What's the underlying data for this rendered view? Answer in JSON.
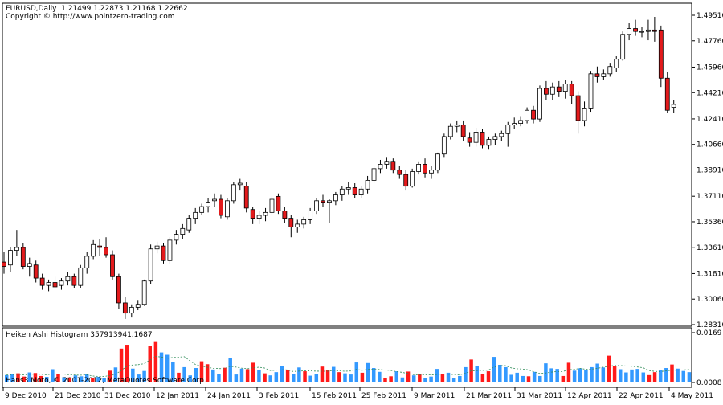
{
  "header": {
    "symbol_line": "EURUSD,Daily  1.21499 1.22873 1.21168 1.22662",
    "copyright": "Copyright © http://www.pointzero-trading.com"
  },
  "indicator": {
    "title": "Heiken Ashi Histogram 357913941.1687",
    "watermark": "Hans3 Moto, © 2001-2012, MetaQuotes Software Corp."
  },
  "colors": {
    "bull_body": "#ffffff",
    "bear_body": "#e31a1c",
    "candle_outline": "#000000",
    "hist_bull": "#3399ff",
    "hist_bear": "#ff1a1a",
    "signal_line": "#2e8b57",
    "background": "#ffffff"
  },
  "chart_data": [
    {
      "type": "candlestick",
      "yaxis_ticks": [
        "1.49510",
        "1.47760",
        "1.45960",
        "1.44210",
        "1.42410",
        "1.40660",
        "1.38910",
        "1.37110",
        "1.35360",
        "1.33610",
        "1.31810",
        "1.30060",
        "1.28310"
      ],
      "ylim": [
        1.2831,
        1.4951
      ],
      "xaxis_ticks": [
        "9 Dec 2010",
        "21 Dec 2010",
        "31 Dec 2010",
        "12 Jan 2011",
        "24 Jan 2011",
        "3 Feb 2011",
        "15 Feb 2011",
        "25 Feb 2011",
        "9 Mar 2011",
        "21 Mar 2011",
        "31 Mar 2011",
        "12 Apr 2011",
        "22 Apr 2011",
        "4 May 2011"
      ],
      "candles": [
        {
          "o": 1.326,
          "h": 1.333,
          "l": 1.318,
          "c": 1.323
        },
        {
          "o": 1.324,
          "h": 1.336,
          "l": 1.319,
          "c": 1.334
        },
        {
          "o": 1.334,
          "h": 1.348,
          "l": 1.33,
          "c": 1.336
        },
        {
          "o": 1.336,
          "h": 1.339,
          "l": 1.321,
          "c": 1.323
        },
        {
          "o": 1.323,
          "h": 1.329,
          "l": 1.316,
          "c": 1.325
        },
        {
          "o": 1.324,
          "h": 1.327,
          "l": 1.312,
          "c": 1.315
        },
        {
          "o": 1.315,
          "h": 1.318,
          "l": 1.307,
          "c": 1.31
        },
        {
          "o": 1.31,
          "h": 1.314,
          "l": 1.306,
          "c": 1.312
        },
        {
          "o": 1.312,
          "h": 1.316,
          "l": 1.308,
          "c": 1.309
        },
        {
          "o": 1.31,
          "h": 1.315,
          "l": 1.307,
          "c": 1.313
        },
        {
          "o": 1.313,
          "h": 1.319,
          "l": 1.31,
          "c": 1.316
        },
        {
          "o": 1.316,
          "h": 1.318,
          "l": 1.308,
          "c": 1.31
        },
        {
          "o": 1.31,
          "h": 1.324,
          "l": 1.308,
          "c": 1.322
        },
        {
          "o": 1.322,
          "h": 1.333,
          "l": 1.318,
          "c": 1.33
        },
        {
          "o": 1.33,
          "h": 1.341,
          "l": 1.328,
          "c": 1.338
        },
        {
          "o": 1.337,
          "h": 1.342,
          "l": 1.33,
          "c": 1.336
        },
        {
          "o": 1.336,
          "h": 1.343,
          "l": 1.329,
          "c": 1.331
        },
        {
          "o": 1.331,
          "h": 1.334,
          "l": 1.314,
          "c": 1.316
        },
        {
          "o": 1.316,
          "h": 1.318,
          "l": 1.294,
          "c": 1.298
        },
        {
          "o": 1.298,
          "h": 1.302,
          "l": 1.287,
          "c": 1.291
        },
        {
          "o": 1.291,
          "h": 1.297,
          "l": 1.288,
          "c": 1.295
        },
        {
          "o": 1.295,
          "h": 1.3,
          "l": 1.293,
          "c": 1.297
        },
        {
          "o": 1.297,
          "h": 1.314,
          "l": 1.296,
          "c": 1.313
        },
        {
          "o": 1.313,
          "h": 1.338,
          "l": 1.311,
          "c": 1.335
        },
        {
          "o": 1.335,
          "h": 1.34,
          "l": 1.332,
          "c": 1.337
        },
        {
          "o": 1.337,
          "h": 1.339,
          "l": 1.325,
          "c": 1.327
        },
        {
          "o": 1.327,
          "h": 1.343,
          "l": 1.325,
          "c": 1.341
        },
        {
          "o": 1.341,
          "h": 1.348,
          "l": 1.338,
          "c": 1.345
        },
        {
          "o": 1.345,
          "h": 1.352,
          "l": 1.342,
          "c": 1.349
        },
        {
          "o": 1.348,
          "h": 1.358,
          "l": 1.346,
          "c": 1.356
        },
        {
          "o": 1.356,
          "h": 1.363,
          "l": 1.352,
          "c": 1.36
        },
        {
          "o": 1.36,
          "h": 1.366,
          "l": 1.358,
          "c": 1.364
        },
        {
          "o": 1.364,
          "h": 1.37,
          "l": 1.36,
          "c": 1.367
        },
        {
          "o": 1.368,
          "h": 1.373,
          "l": 1.364,
          "c": 1.369
        },
        {
          "o": 1.369,
          "h": 1.372,
          "l": 1.356,
          "c": 1.358
        },
        {
          "o": 1.357,
          "h": 1.37,
          "l": 1.355,
          "c": 1.368
        },
        {
          "o": 1.368,
          "h": 1.381,
          "l": 1.366,
          "c": 1.379
        },
        {
          "o": 1.379,
          "h": 1.383,
          "l": 1.375,
          "c": 1.38
        },
        {
          "o": 1.378,
          "h": 1.381,
          "l": 1.36,
          "c": 1.363
        },
        {
          "o": 1.362,
          "h": 1.364,
          "l": 1.352,
          "c": 1.356
        },
        {
          "o": 1.356,
          "h": 1.361,
          "l": 1.352,
          "c": 1.358
        },
        {
          "o": 1.358,
          "h": 1.363,
          "l": 1.354,
          "c": 1.36
        },
        {
          "o": 1.36,
          "h": 1.371,
          "l": 1.358,
          "c": 1.369
        },
        {
          "o": 1.371,
          "h": 1.373,
          "l": 1.359,
          "c": 1.361
        },
        {
          "o": 1.361,
          "h": 1.364,
          "l": 1.353,
          "c": 1.356
        },
        {
          "o": 1.356,
          "h": 1.358,
          "l": 1.343,
          "c": 1.35
        },
        {
          "o": 1.35,
          "h": 1.355,
          "l": 1.346,
          "c": 1.352
        },
        {
          "o": 1.352,
          "h": 1.357,
          "l": 1.349,
          "c": 1.355
        },
        {
          "o": 1.355,
          "h": 1.363,
          "l": 1.352,
          "c": 1.361
        },
        {
          "o": 1.361,
          "h": 1.37,
          "l": 1.359,
          "c": 1.368
        },
        {
          "o": 1.368,
          "h": 1.372,
          "l": 1.364,
          "c": 1.367
        },
        {
          "o": 1.367,
          "h": 1.369,
          "l": 1.353,
          "c": 1.368
        },
        {
          "o": 1.368,
          "h": 1.374,
          "l": 1.365,
          "c": 1.372
        },
        {
          "o": 1.372,
          "h": 1.378,
          "l": 1.368,
          "c": 1.376
        },
        {
          "o": 1.376,
          "h": 1.381,
          "l": 1.372,
          "c": 1.377
        },
        {
          "o": 1.377,
          "h": 1.38,
          "l": 1.37,
          "c": 1.372
        },
        {
          "o": 1.372,
          "h": 1.378,
          "l": 1.37,
          "c": 1.376
        },
        {
          "o": 1.376,
          "h": 1.385,
          "l": 1.373,
          "c": 1.382
        },
        {
          "o": 1.382,
          "h": 1.392,
          "l": 1.38,
          "c": 1.39
        },
        {
          "o": 1.39,
          "h": 1.396,
          "l": 1.387,
          "c": 1.393
        },
        {
          "o": 1.393,
          "h": 1.398,
          "l": 1.39,
          "c": 1.395
        },
        {
          "o": 1.395,
          "h": 1.397,
          "l": 1.387,
          "c": 1.389
        },
        {
          "o": 1.389,
          "h": 1.392,
          "l": 1.383,
          "c": 1.386
        },
        {
          "o": 1.386,
          "h": 1.389,
          "l": 1.375,
          "c": 1.378
        },
        {
          "o": 1.378,
          "h": 1.39,
          "l": 1.377,
          "c": 1.388
        },
        {
          "o": 1.388,
          "h": 1.395,
          "l": 1.386,
          "c": 1.393
        },
        {
          "o": 1.393,
          "h": 1.397,
          "l": 1.384,
          "c": 1.387
        },
        {
          "o": 1.387,
          "h": 1.392,
          "l": 1.383,
          "c": 1.389
        },
        {
          "o": 1.389,
          "h": 1.401,
          "l": 1.387,
          "c": 1.4
        },
        {
          "o": 1.4,
          "h": 1.414,
          "l": 1.398,
          "c": 1.412
        },
        {
          "o": 1.412,
          "h": 1.421,
          "l": 1.41,
          "c": 1.419
        },
        {
          "o": 1.419,
          "h": 1.423,
          "l": 1.415,
          "c": 1.42
        },
        {
          "o": 1.42,
          "h": 1.423,
          "l": 1.409,
          "c": 1.412
        },
        {
          "o": 1.411,
          "h": 1.415,
          "l": 1.405,
          "c": 1.408
        },
        {
          "o": 1.408,
          "h": 1.418,
          "l": 1.405,
          "c": 1.415
        },
        {
          "o": 1.415,
          "h": 1.417,
          "l": 1.404,
          "c": 1.406
        },
        {
          "o": 1.406,
          "h": 1.412,
          "l": 1.403,
          "c": 1.41
        },
        {
          "o": 1.41,
          "h": 1.414,
          "l": 1.406,
          "c": 1.412
        },
        {
          "o": 1.412,
          "h": 1.416,
          "l": 1.409,
          "c": 1.414
        },
        {
          "o": 1.414,
          "h": 1.422,
          "l": 1.405,
          "c": 1.42
        },
        {
          "o": 1.42,
          "h": 1.425,
          "l": 1.417,
          "c": 1.421
        },
        {
          "o": 1.421,
          "h": 1.426,
          "l": 1.419,
          "c": 1.423
        },
        {
          "o": 1.423,
          "h": 1.432,
          "l": 1.421,
          "c": 1.43
        },
        {
          "o": 1.43,
          "h": 1.433,
          "l": 1.421,
          "c": 1.424
        },
        {
          "o": 1.424,
          "h": 1.447,
          "l": 1.422,
          "c": 1.445
        },
        {
          "o": 1.445,
          "h": 1.45,
          "l": 1.437,
          "c": 1.441
        },
        {
          "o": 1.441,
          "h": 1.449,
          "l": 1.437,
          "c": 1.446
        },
        {
          "o": 1.446,
          "h": 1.45,
          "l": 1.439,
          "c": 1.443
        },
        {
          "o": 1.443,
          "h": 1.451,
          "l": 1.438,
          "c": 1.448
        },
        {
          "o": 1.448,
          "h": 1.45,
          "l": 1.434,
          "c": 1.44
        },
        {
          "o": 1.44,
          "h": 1.443,
          "l": 1.414,
          "c": 1.423
        },
        {
          "o": 1.423,
          "h": 1.436,
          "l": 1.419,
          "c": 1.431
        },
        {
          "o": 1.431,
          "h": 1.457,
          "l": 1.429,
          "c": 1.455
        },
        {
          "o": 1.455,
          "h": 1.46,
          "l": 1.449,
          "c": 1.453
        },
        {
          "o": 1.453,
          "h": 1.458,
          "l": 1.451,
          "c": 1.455
        },
        {
          "o": 1.455,
          "h": 1.462,
          "l": 1.453,
          "c": 1.46
        },
        {
          "o": 1.459,
          "h": 1.467,
          "l": 1.456,
          "c": 1.465
        },
        {
          "o": 1.465,
          "h": 1.484,
          "l": 1.464,
          "c": 1.482
        },
        {
          "o": 1.482,
          "h": 1.49,
          "l": 1.478,
          "c": 1.486
        },
        {
          "o": 1.486,
          "h": 1.492,
          "l": 1.481,
          "c": 1.484
        },
        {
          "o": 1.484,
          "h": 1.487,
          "l": 1.48,
          "c": 1.484
        },
        {
          "o": 1.484,
          "h": 1.492,
          "l": 1.478,
          "c": 1.485
        },
        {
          "o": 1.485,
          "h": 1.494,
          "l": 1.477,
          "c": 1.484
        },
        {
          "o": 1.485,
          "h": 1.488,
          "l": 1.446,
          "c": 1.452
        },
        {
          "o": 1.452,
          "h": 1.456,
          "l": 1.428,
          "c": 1.43
        },
        {
          "o": 1.432,
          "h": 1.437,
          "l": 1.428,
          "c": 1.434
        }
      ]
    },
    {
      "type": "bar",
      "title": "Heiken Ashi Histogram 357913941.1687",
      "yaxis_ticks": [
        "0.0169",
        "0.0008"
      ],
      "ylim": [
        0,
        0.0169
      ],
      "values": [
        0.0025,
        0.0028,
        0.0031,
        0.002,
        0.0034,
        0.0032,
        0.0022,
        0.0019,
        0.0045,
        0.003,
        0.0018,
        0.0017,
        0.0024,
        0.0021,
        0.0028,
        0.0016,
        0.0019,
        0.0016,
        0.004,
        0.0051,
        0.0115,
        0.0128,
        0.0047,
        0.0027,
        0.0039,
        0.0123,
        0.014,
        0.0102,
        0.0094,
        0.007,
        0.0033,
        0.0052,
        0.0024,
        0.0049,
        0.0072,
        0.0062,
        0.0044,
        0.0028,
        0.005,
        0.0083,
        0.0027,
        0.0047,
        0.0045,
        0.0067,
        0.0043,
        0.0031,
        0.0024,
        0.0035,
        0.0056,
        0.0043,
        0.0029,
        0.0051,
        0.0038,
        0.0023,
        0.0029,
        0.0054,
        0.0043,
        0.0053,
        0.0035,
        0.0031,
        0.0027,
        0.0068,
        0.0033,
        0.0066,
        0.0049,
        0.0036,
        0.0014,
        0.0021,
        0.0038,
        0.0017,
        0.0037,
        0.0024,
        0.0029,
        0.0016,
        0.002,
        0.0046,
        0.0028,
        0.0033,
        0.0016,
        0.0022,
        0.0052,
        0.0078,
        0.0055,
        0.003,
        0.0038,
        0.0087,
        0.006,
        0.0052,
        0.0026,
        0.0033,
        0.0022,
        0.0021,
        0.0036,
        0.0022,
        0.0065,
        0.0048,
        0.0046,
        0.0022,
        0.0067,
        0.004,
        0.0048,
        0.0041,
        0.0052,
        0.0064,
        0.0051,
        0.0091,
        0.0057,
        0.0045,
        0.0034,
        0.0044,
        0.0046,
        0.0034,
        0.0025,
        0.0035,
        0.0041,
        0.0049,
        0.0061,
        0.0047,
        0.0039,
        0.0035
      ],
      "bear": [
        false,
        false,
        true,
        true,
        false,
        true,
        true,
        false,
        false,
        true,
        false,
        true,
        false,
        false,
        false,
        true,
        false,
        false,
        true,
        false,
        true,
        true,
        false,
        false,
        false,
        true,
        true,
        false,
        false,
        false,
        true,
        false,
        false,
        false,
        true,
        true,
        false,
        false,
        true,
        false,
        false,
        false,
        true,
        true,
        false,
        true,
        false,
        false,
        false,
        true,
        false,
        false,
        true,
        false,
        false,
        true,
        true,
        false,
        true,
        false,
        false,
        false,
        true,
        false,
        false,
        false,
        true,
        true,
        false,
        false,
        true,
        false,
        true,
        false,
        false,
        false,
        true,
        false,
        false,
        false,
        false,
        true,
        false,
        true,
        true,
        false,
        false,
        false,
        false,
        false,
        false,
        true,
        false,
        false,
        false,
        false,
        false,
        true,
        true,
        false,
        false,
        false,
        false,
        false,
        false,
        true,
        true,
        false,
        false,
        false,
        false,
        false,
        true,
        true,
        false,
        false,
        true,
        false,
        false,
        false
      ]
    }
  ]
}
